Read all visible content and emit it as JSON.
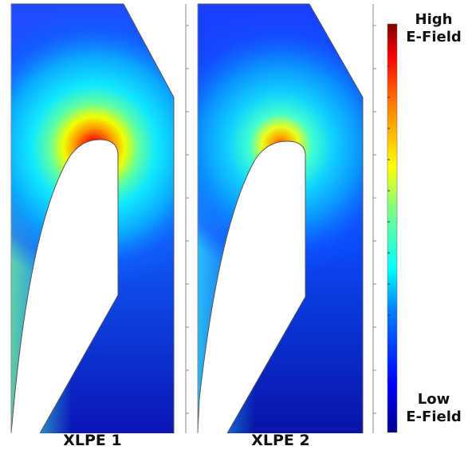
{
  "panels": [
    {
      "label": "XLPE 1",
      "field_peak": 1.0
    },
    {
      "label": "XLPE 2",
      "field_peak": 0.78
    }
  ],
  "colorbar": {
    "high_label_1": "High",
    "high_label_2": "E-Field",
    "low_label_1": "Low",
    "low_label_2": "E-Field",
    "colormap": "jet"
  }
}
